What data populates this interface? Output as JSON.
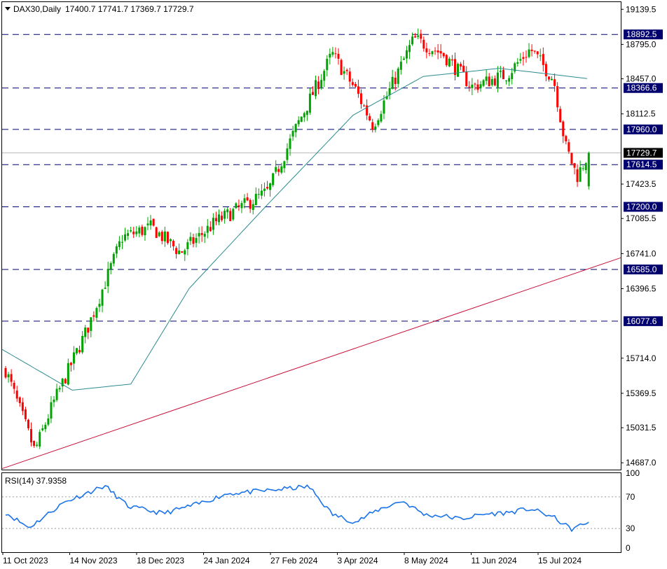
{
  "header": {
    "symbol": "DAX30,Daily",
    "ohlc": "17400.7 17741.7 17369.7 17729.7"
  },
  "colors": {
    "up": "#00a400",
    "down": "#ff0000",
    "ma": "#2b8b8f",
    "rsi": "#1a73e8",
    "level_line": "#00006e",
    "level_label_bg": "#00006e",
    "trendline": "#c8103a",
    "price_label_bg": "#000000",
    "grid_dotted": "#9a9a9a"
  },
  "chart_data": {
    "type": "candlestick",
    "symbol": "DAX30",
    "timeframe": "Daily",
    "last_bar": {
      "open": 17400.7,
      "high": 17741.7,
      "low": 17369.7,
      "close": 17729.7
    },
    "current_price_label": "17729.7",
    "y_axis_ticks": [
      "19139.5",
      "18795.0",
      "18457.0",
      "18112.5",
      "17423.5",
      "17085.5",
      "16741.0",
      "16396.5",
      "15714.0",
      "15369.5",
      "15031.5",
      "14687.0"
    ],
    "y_range": [
      14620,
      19210
    ],
    "x_axis_ticks": [
      "11 Oct 2023",
      "14 Nov 2023",
      "18 Dec 2023",
      "24 Jan 2024",
      "27 Feb 2024",
      "3 Apr 2024",
      "8 May 2024",
      "11 Jun 2024",
      "15 Jul 2024"
    ],
    "horizontal_levels": [
      "18892.5",
      "18366.6",
      "17960.0",
      "17614.5",
      "17200.0",
      "16585.0",
      "16077.6"
    ],
    "trendline": {
      "start": [
        0,
        14630
      ],
      "end": [
        1,
        16700
      ]
    },
    "moving_average": {
      "start": 15800,
      "anchors": [
        [
          0,
          15800
        ],
        [
          0.12,
          15400
        ],
        [
          0.22,
          15460
        ],
        [
          0.32,
          16400
        ],
        [
          0.45,
          17200
        ],
        [
          0.6,
          18100
        ],
        [
          0.72,
          18480
        ],
        [
          0.85,
          18560
        ],
        [
          1,
          18460
        ]
      ]
    },
    "price_anchors": [
      [
        0,
        15600
      ],
      [
        0.05,
        14800
      ],
      [
        0.08,
        15250
      ],
      [
        0.14,
        16000
      ],
      [
        0.2,
        16900
      ],
      [
        0.25,
        17000
      ],
      [
        0.3,
        16750
      ],
      [
        0.36,
        17050
      ],
      [
        0.45,
        17350
      ],
      [
        0.5,
        18000
      ],
      [
        0.56,
        18700
      ],
      [
        0.6,
        18350
      ],
      [
        0.63,
        18000
      ],
      [
        0.7,
        18850
      ],
      [
        0.75,
        18700
      ],
      [
        0.8,
        18380
      ],
      [
        0.86,
        18500
      ],
      [
        0.9,
        18750
      ],
      [
        0.94,
        18450
      ],
      [
        0.96,
        17800
      ],
      [
        0.98,
        17500
      ],
      [
        1,
        17729.7
      ]
    ],
    "bar_count": 206,
    "rsi": {
      "label": "RSI(14) 37.9358",
      "period": 14,
      "value": 37.9358,
      "y_axis_ticks": [
        "100",
        "70",
        "30",
        "0"
      ],
      "levels": [
        70,
        30
      ],
      "anchors": [
        [
          0,
          50
        ],
        [
          0.04,
          31
        ],
        [
          0.1,
          63
        ],
        [
          0.17,
          84
        ],
        [
          0.21,
          58
        ],
        [
          0.27,
          49
        ],
        [
          0.33,
          61
        ],
        [
          0.38,
          74
        ],
        [
          0.45,
          78
        ],
        [
          0.52,
          83
        ],
        [
          0.56,
          48
        ],
        [
          0.6,
          38
        ],
        [
          0.64,
          54
        ],
        [
          0.68,
          65
        ],
        [
          0.72,
          47
        ],
        [
          0.75,
          46
        ],
        [
          0.78,
          42
        ],
        [
          0.82,
          48
        ],
        [
          0.86,
          50
        ],
        [
          0.9,
          55
        ],
        [
          0.94,
          44
        ],
        [
          0.97,
          29
        ],
        [
          1,
          37.9
        ]
      ]
    }
  }
}
